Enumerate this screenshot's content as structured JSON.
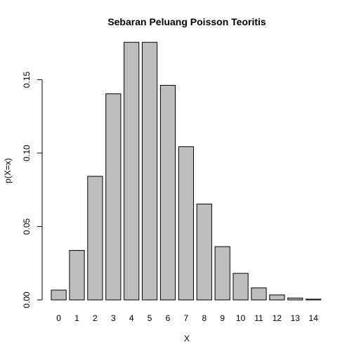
{
  "chart_data": {
    "type": "bar",
    "title": "Sebaran Peluang Poisson Teoritis",
    "xlabel": "X",
    "ylabel": "p(X=x)",
    "categories": [
      "0",
      "1",
      "2",
      "3",
      "4",
      "5",
      "6",
      "7",
      "8",
      "9",
      "10",
      "11",
      "12",
      "13",
      "14"
    ],
    "values": [
      0.0067,
      0.0337,
      0.0842,
      0.1404,
      0.1755,
      0.1755,
      0.1462,
      0.1044,
      0.0653,
      0.0363,
      0.0181,
      0.0082,
      0.0034,
      0.0013,
      0.0005
    ],
    "yticks": [
      0.0,
      0.05,
      0.1,
      0.15
    ],
    "ytick_labels": [
      "0.00",
      "0.05",
      "0.10",
      "0.15"
    ],
    "ylim": [
      0,
      0.18
    ],
    "grid": false,
    "bar_color": "#bebebe",
    "bar_edge_color": "#000000"
  }
}
